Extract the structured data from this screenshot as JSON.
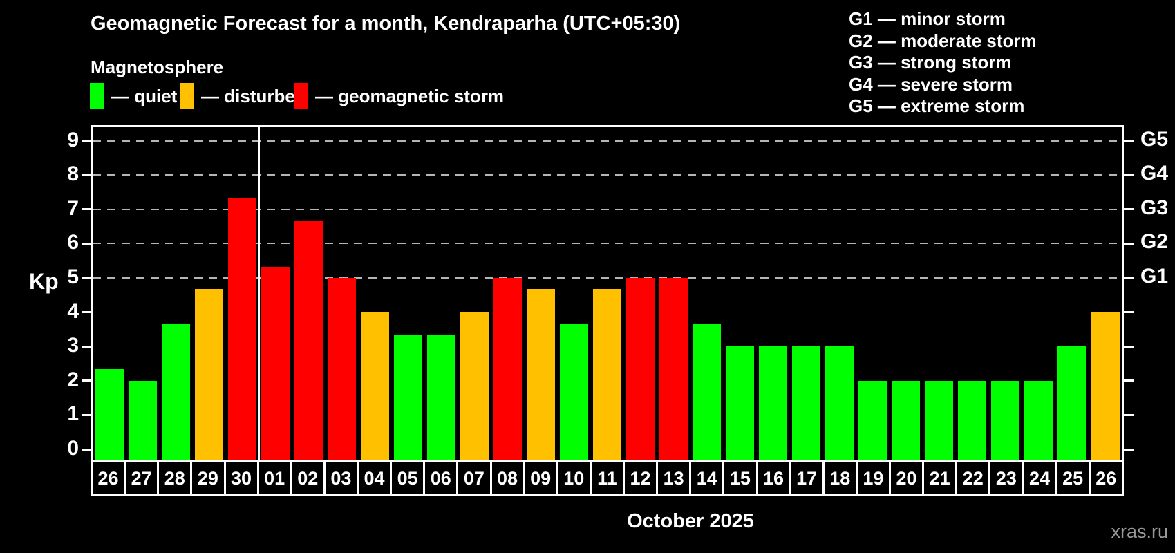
{
  "header": {
    "title": "Geomagnetic Forecast for a month, Kendraparha (UTC+05:30)",
    "subtitle": "Magnetosphere"
  },
  "legend": {
    "items": [
      {
        "key": "quiet",
        "label": "— quiet",
        "color": "#00ff00"
      },
      {
        "key": "disturbed",
        "label": "— disturbed",
        "color": "#ffc000"
      },
      {
        "key": "storm",
        "label": "— geomagnetic storm",
        "color": "#ff0000"
      }
    ]
  },
  "g_legend": {
    "lines": [
      "G1 — minor storm",
      "G2 — moderate storm",
      "G3 — strong storm",
      "G4 — severe storm",
      "G5 — extreme storm"
    ]
  },
  "footer": {
    "watermark": "xras.ru"
  },
  "chart_data": {
    "type": "bar",
    "title": "Geomagnetic Forecast for a month, Kendraparha (UTC+05:30)",
    "xlabel": "October 2025",
    "ylabel": "Kp",
    "ylim": [
      0,
      9
    ],
    "y_ticks": [
      0,
      1,
      2,
      3,
      4,
      5,
      6,
      7,
      8,
      9
    ],
    "gridlines_at": [
      5,
      6,
      7,
      8,
      9
    ],
    "grid": "dashed horizontal at storm levels only",
    "legend_position": "top-left",
    "right_axis": [
      {
        "kp": 5,
        "label": "G1"
      },
      {
        "kp": 6,
        "label": "G2"
      },
      {
        "kp": 7,
        "label": "G3"
      },
      {
        "kp": 8,
        "label": "G4"
      },
      {
        "kp": 9,
        "label": "G5"
      }
    ],
    "month_separator_before_date": "01",
    "categories": [
      "26",
      "27",
      "28",
      "29",
      "30",
      "01",
      "02",
      "03",
      "04",
      "05",
      "06",
      "07",
      "08",
      "09",
      "10",
      "11",
      "12",
      "13",
      "14",
      "15",
      "16",
      "17",
      "18",
      "19",
      "20",
      "21",
      "22",
      "23",
      "24",
      "25",
      "26"
    ],
    "bars": [
      {
        "date": "26",
        "kp": 2.33,
        "level": "quiet"
      },
      {
        "date": "27",
        "kp": 2.0,
        "level": "quiet"
      },
      {
        "date": "28",
        "kp": 3.67,
        "level": "quiet"
      },
      {
        "date": "29",
        "kp": 4.67,
        "level": "disturbed"
      },
      {
        "date": "30",
        "kp": 7.33,
        "level": "storm"
      },
      {
        "date": "01",
        "kp": 5.33,
        "level": "storm"
      },
      {
        "date": "02",
        "kp": 6.67,
        "level": "storm"
      },
      {
        "date": "03",
        "kp": 5.0,
        "level": "storm"
      },
      {
        "date": "04",
        "kp": 4.0,
        "level": "disturbed"
      },
      {
        "date": "05",
        "kp": 3.33,
        "level": "quiet"
      },
      {
        "date": "06",
        "kp": 3.33,
        "level": "quiet"
      },
      {
        "date": "07",
        "kp": 4.0,
        "level": "disturbed"
      },
      {
        "date": "08",
        "kp": 5.0,
        "level": "storm"
      },
      {
        "date": "09",
        "kp": 4.67,
        "level": "disturbed"
      },
      {
        "date": "10",
        "kp": 3.67,
        "level": "quiet"
      },
      {
        "date": "11",
        "kp": 4.67,
        "level": "disturbed"
      },
      {
        "date": "12",
        "kp": 5.0,
        "level": "storm"
      },
      {
        "date": "13",
        "kp": 5.0,
        "level": "storm"
      },
      {
        "date": "14",
        "kp": 3.67,
        "level": "quiet"
      },
      {
        "date": "15",
        "kp": 3.0,
        "level": "quiet"
      },
      {
        "date": "16",
        "kp": 3.0,
        "level": "quiet"
      },
      {
        "date": "17",
        "kp": 3.0,
        "level": "quiet"
      },
      {
        "date": "18",
        "kp": 3.0,
        "level": "quiet"
      },
      {
        "date": "19",
        "kp": 2.0,
        "level": "quiet"
      },
      {
        "date": "20",
        "kp": 2.0,
        "level": "quiet"
      },
      {
        "date": "21",
        "kp": 2.0,
        "level": "quiet"
      },
      {
        "date": "22",
        "kp": 2.0,
        "level": "quiet"
      },
      {
        "date": "23",
        "kp": 2.0,
        "level": "quiet"
      },
      {
        "date": "24",
        "kp": 2.0,
        "level": "quiet"
      },
      {
        "date": "25",
        "kp": 3.0,
        "level": "quiet"
      },
      {
        "date": "26",
        "kp": 4.0,
        "level": "disturbed"
      }
    ]
  }
}
